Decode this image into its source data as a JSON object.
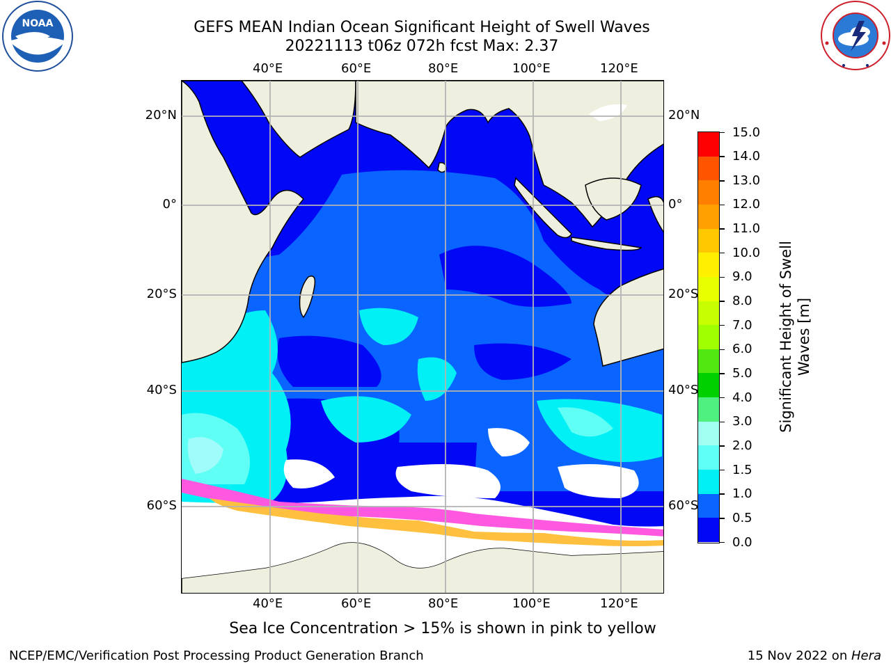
{
  "header": {
    "title_line1": "GEFS MEAN Indian Ocean Significant Height of Swell Waves",
    "title_line2": "20221113 t06z 072h fcst   Max: 2.37"
  },
  "map": {
    "longitude_labels": [
      "40°E",
      "60°E",
      "80°E",
      "100°E",
      "120°E"
    ],
    "latitude_labels": [
      "20°N",
      "0°",
      "20°S",
      "40°S",
      "60°S"
    ],
    "lon_range": [
      20,
      130
    ],
    "lat_range": [
      -76,
      28
    ],
    "grid": true,
    "colors": {
      "ocean_low": "#0008f5",
      "ocean_mid": "#0a64ff",
      "ocean_high": "#00f0f5",
      "swell_peak": "#9ffcfb",
      "land": "#efefdf",
      "sea_ice": "#ff58e0",
      "ice_edge": "#ffc040",
      "no_data": "#ffffff"
    }
  },
  "colorbar": {
    "label": "Significant Height of Swell Waves [m]",
    "ticks": [
      "15.0",
      "14.0",
      "13.0",
      "12.0",
      "11.0",
      "10.0",
      "9.0",
      "8.0",
      "7.0",
      "6.0",
      "5.0",
      "4.0",
      "3.0",
      "2.0",
      "1.5",
      "1.0",
      "0.5",
      "0.0"
    ],
    "segment_colors": [
      "#ff0000",
      "#ff2a00",
      "#ff5500",
      "#ff7f00",
      "#ffa000",
      "#ffc800",
      "#fff000",
      "#e8ff00",
      "#c8ff00",
      "#a0ff00",
      "#50e810",
      "#00d000",
      "#50f080",
      "#a0fff0",
      "#60fff5",
      "#00f0f5",
      "#0a64ff",
      "#0008f5"
    ]
  },
  "footer": {
    "note": "Sea Ice Concentration > 15% is shown in pink to yellow",
    "left": "NCEP/EMC/Verification Post Processing Product Generation Branch",
    "right_date": "15 Nov 2022 on ",
    "right_host": "Hera"
  }
}
